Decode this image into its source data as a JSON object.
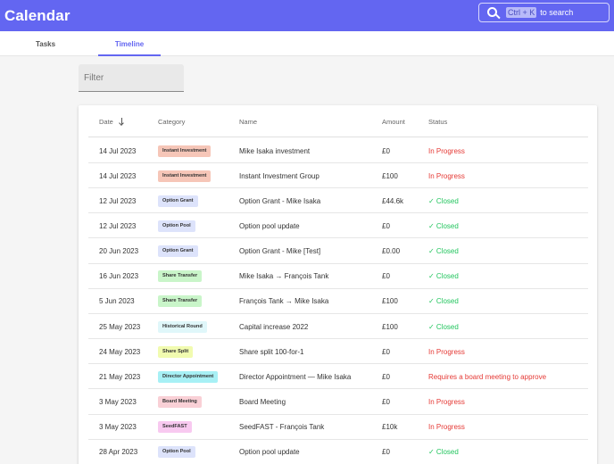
{
  "app": {
    "title": "Calendar"
  },
  "search": {
    "shortcut": "Ctrl + K",
    "hint": "to search"
  },
  "tabs": [
    {
      "label": "Tasks",
      "active": false
    },
    {
      "label": "Timeline",
      "active": true
    }
  ],
  "filter": {
    "label": "Filter"
  },
  "table": {
    "headers": {
      "date": "Date",
      "category": "Category",
      "name": "Name",
      "amount": "Amount",
      "status": "Status"
    },
    "sort": {
      "column": "date",
      "direction": "descending"
    },
    "rows": [
      {
        "date": "14 Jul 2023",
        "category": "Instant Investment",
        "category_color": "#f6c6b8",
        "name": "Mike Isaka investment",
        "amount": "£0",
        "status": "In Progress",
        "status_color": "#e53935"
      },
      {
        "date": "14 Jul 2023",
        "category": "Instant Investment",
        "category_color": "#f6c6b8",
        "name": "Instant Investment Group",
        "amount": "£100",
        "status": "In Progress",
        "status_color": "#e53935"
      },
      {
        "date": "12 Jul 2023",
        "category": "Option Grant",
        "category_color": "#dde3fb",
        "name": "Option Grant - Mike Isaka",
        "amount": "£44.6k",
        "status": "✓ Closed",
        "status_color": "#22c55e"
      },
      {
        "date": "12 Jul 2023",
        "category": "Option Pool",
        "category_color": "#dde3fb",
        "name": "Option pool update",
        "amount": "£0",
        "status": "✓ Closed",
        "status_color": "#22c55e"
      },
      {
        "date": "20 Jun 2023",
        "category": "Option Grant",
        "category_color": "#dde3fb",
        "name": "Option Grant - Mike [Test]",
        "amount": "£0.00",
        "status": "✓ Closed",
        "status_color": "#22c55e"
      },
      {
        "date": "16 Jun 2023",
        "category": "Share Transfer",
        "category_color": "#c9f5c9",
        "name": "Mike Isaka → François Tank",
        "amount": "£0",
        "status": "✓ Closed",
        "status_color": "#22c55e"
      },
      {
        "date": "5 Jun 2023",
        "category": "Share Transfer",
        "category_color": "#c9f5c9",
        "name": "François Tank → Mike Isaka",
        "amount": "£100",
        "status": "✓ Closed",
        "status_color": "#22c55e"
      },
      {
        "date": "25 May 2023",
        "category": "Historical Round",
        "category_color": "#e0f7fa",
        "name": "Capital increase 2022",
        "amount": "£100",
        "status": "✓ Closed",
        "status_color": "#22c55e"
      },
      {
        "date": "24 May 2023",
        "category": "Share Split",
        "category_color": "#f1fbb0",
        "name": "Share split 100-for-1",
        "amount": "£0",
        "status": "In Progress",
        "status_color": "#e53935"
      },
      {
        "date": "21 May 2023",
        "category": "Director Appointment",
        "category_color": "#a7f0f5",
        "name": "Director Appointment — Mike Isaka",
        "amount": "£0",
        "status": "Requires a board meeting to approve",
        "status_color": "#e53935"
      },
      {
        "date": "3 May 2023",
        "category": "Board Meeting",
        "category_color": "#f9d0d6",
        "name": "Board Meeting",
        "amount": "£0",
        "status": "In Progress",
        "status_color": "#e53935"
      },
      {
        "date": "3 May 2023",
        "category": "SeedFAST",
        "category_color": "#f8c9f0",
        "name": "SeedFAST - François Tank",
        "amount": "£10k",
        "status": "In Progress",
        "status_color": "#e53935"
      },
      {
        "date": "28 Apr 2023",
        "category": "Option Pool",
        "category_color": "#dde3fb",
        "name": "Option pool update",
        "amount": "£0",
        "status": "✓ Closed",
        "status_color": "#22c55e"
      }
    ]
  }
}
